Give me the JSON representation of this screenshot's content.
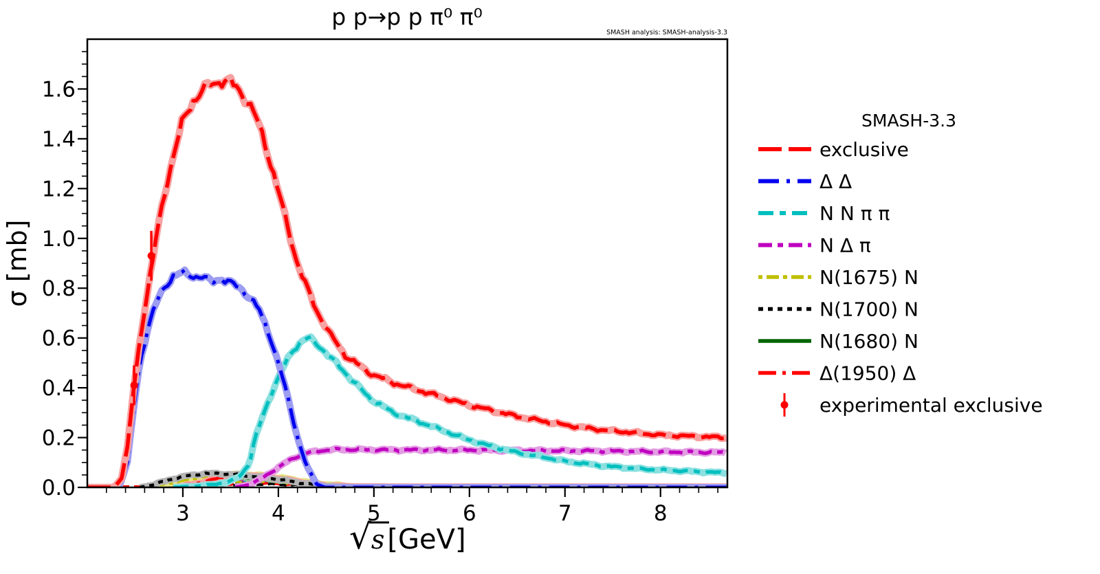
{
  "title": "p p→p p π⁰ π⁰",
  "watermark": "SMASH analysis: SMASH-analysis-3.3",
  "xlabel_parts": {
    "radical": "√",
    "symbol": "s",
    "unit": "[GeV]"
  },
  "legend": {
    "title": "SMASH-3.3"
  },
  "colors": {
    "exclusive": "#ff0000",
    "delta_delta": "#0000ee",
    "nnpipi": "#00bfbf",
    "ndpi": "#bf00bf",
    "n1675": "#bfbf00",
    "n1700": "#000000",
    "n1680": "#006400",
    "d1950": "#ff0000",
    "experimental": "#ff0000"
  },
  "chart_data": {
    "type": "line",
    "title": "p p→p p π⁰ π⁰",
    "xlabel": "√s [GeV]",
    "ylabel": "σ [mb]",
    "xlim": [
      2.0,
      8.7
    ],
    "ylim": [
      0,
      1.8
    ],
    "xticks": [
      3,
      4,
      5,
      6,
      7,
      8
    ],
    "yticks": [
      0.0,
      0.2,
      0.4,
      0.6,
      0.8,
      1.0,
      1.2,
      1.4,
      1.6
    ],
    "x_minor_step": 0.2,
    "y_minor_step": 0.05,
    "grid": false,
    "legend_position": "right-outside",
    "series": [
      {
        "name": "exclusive",
        "label": "exclusive",
        "color": "#ff0000",
        "band": "#f8a2a2",
        "dash": "34 10",
        "width": 5.5,
        "z": 9,
        "in_legend": true,
        "points": [
          [
            2.0,
            0
          ],
          [
            2.28,
            0
          ],
          [
            2.36,
            0.04
          ],
          [
            2.42,
            0.16
          ],
          [
            2.49,
            0.41
          ],
          [
            2.56,
            0.62
          ],
          [
            2.62,
            0.76
          ],
          [
            2.7,
            0.95
          ],
          [
            2.8,
            1.17
          ],
          [
            2.9,
            1.33
          ],
          [
            3.0,
            1.47
          ],
          [
            3.1,
            1.55
          ],
          [
            3.2,
            1.59
          ],
          [
            3.3,
            1.62
          ],
          [
            3.4,
            1.635
          ],
          [
            3.5,
            1.625
          ],
          [
            3.6,
            1.59
          ],
          [
            3.7,
            1.54
          ],
          [
            3.8,
            1.45
          ],
          [
            3.9,
            1.33
          ],
          [
            4.0,
            1.19
          ],
          [
            4.1,
            1.04
          ],
          [
            4.2,
            0.9
          ],
          [
            4.3,
            0.8
          ],
          [
            4.4,
            0.71
          ],
          [
            4.55,
            0.61
          ],
          [
            4.7,
            0.53
          ],
          [
            4.95,
            0.46
          ],
          [
            5.2,
            0.42
          ],
          [
            5.6,
            0.375
          ],
          [
            6.0,
            0.33
          ],
          [
            6.5,
            0.285
          ],
          [
            7.0,
            0.25
          ],
          [
            7.4,
            0.23
          ],
          [
            8.0,
            0.21
          ],
          [
            8.69,
            0.2
          ]
        ]
      },
      {
        "name": "delta-delta",
        "label": "Δ Δ",
        "color": "#0000ee",
        "band": "#9d9df2",
        "dash": "30 11 5 11",
        "width": 5,
        "z": 8,
        "in_legend": true,
        "points": [
          [
            2.0,
            0
          ],
          [
            2.33,
            0
          ],
          [
            2.42,
            0.1
          ],
          [
            2.49,
            0.33
          ],
          [
            2.55,
            0.5
          ],
          [
            2.62,
            0.62
          ],
          [
            2.7,
            0.72
          ],
          [
            2.8,
            0.8
          ],
          [
            2.9,
            0.85
          ],
          [
            3.0,
            0.86
          ],
          [
            3.1,
            0.85
          ],
          [
            3.2,
            0.845
          ],
          [
            3.3,
            0.825
          ],
          [
            3.4,
            0.84
          ],
          [
            3.5,
            0.82
          ],
          [
            3.6,
            0.8
          ],
          [
            3.7,
            0.765
          ],
          [
            3.8,
            0.71
          ],
          [
            3.9,
            0.62
          ],
          [
            4.0,
            0.5
          ],
          [
            4.1,
            0.36
          ],
          [
            4.2,
            0.2
          ],
          [
            4.3,
            0.08
          ],
          [
            4.4,
            0.015
          ],
          [
            4.48,
            0
          ],
          [
            8.69,
            0
          ]
        ]
      },
      {
        "name": "nn-pipi",
        "label": "N N π π",
        "color": "#00bfbf",
        "band": "#8ce0e0",
        "dash": "22 9 9 9",
        "width": 5,
        "z": 7,
        "in_legend": true,
        "points": [
          [
            2.9,
            0
          ],
          [
            3.3,
            0.01
          ],
          [
            3.5,
            0.025
          ],
          [
            3.6,
            0.045
          ],
          [
            3.7,
            0.1
          ],
          [
            3.75,
            0.19
          ],
          [
            3.85,
            0.3
          ],
          [
            3.95,
            0.4
          ],
          [
            4.05,
            0.48
          ],
          [
            4.15,
            0.55
          ],
          [
            4.25,
            0.59
          ],
          [
            4.32,
            0.6
          ],
          [
            4.45,
            0.56
          ],
          [
            4.6,
            0.5
          ],
          [
            4.8,
            0.42
          ],
          [
            4.95,
            0.36
          ],
          [
            5.2,
            0.3
          ],
          [
            5.57,
            0.25
          ],
          [
            5.96,
            0.195
          ],
          [
            6.18,
            0.17
          ],
          [
            6.5,
            0.14
          ],
          [
            6.8,
            0.12
          ],
          [
            7.0,
            0.105
          ],
          [
            7.4,
            0.086
          ],
          [
            7.8,
            0.074
          ],
          [
            8.0,
            0.07
          ],
          [
            8.4,
            0.063
          ],
          [
            8.69,
            0.058
          ]
        ]
      },
      {
        "name": "n-delta-pi",
        "label": "N Δ π",
        "color": "#bf00bf",
        "band": "#e39de3",
        "dash": "20 8 8 8",
        "width": 5,
        "z": 6,
        "in_legend": true,
        "points": [
          [
            3.55,
            0
          ],
          [
            3.7,
            0.012
          ],
          [
            3.8,
            0.03
          ],
          [
            3.9,
            0.055
          ],
          [
            4.0,
            0.08
          ],
          [
            4.1,
            0.105
          ],
          [
            4.2,
            0.125
          ],
          [
            4.3,
            0.138
          ],
          [
            4.45,
            0.148
          ],
          [
            4.6,
            0.152
          ],
          [
            5.0,
            0.151
          ],
          [
            5.5,
            0.15
          ],
          [
            6.0,
            0.15
          ],
          [
            6.5,
            0.148
          ],
          [
            7.0,
            0.147
          ],
          [
            7.4,
            0.146
          ],
          [
            8.0,
            0.143
          ],
          [
            8.69,
            0.14
          ]
        ]
      },
      {
        "name": "n1675-n",
        "label": "N(1675) N",
        "color": "#bfbf00",
        "band": "#e6e68a",
        "dash": "6 6 18 6",
        "width": 4.5,
        "z": 3,
        "in_legend": true,
        "points": [
          [
            2.6,
            0
          ],
          [
            2.9,
            0.02
          ],
          [
            3.2,
            0.042
          ],
          [
            3.5,
            0.052
          ],
          [
            3.7,
            0.052
          ],
          [
            3.9,
            0.045
          ],
          [
            4.1,
            0.035
          ],
          [
            4.3,
            0.022
          ],
          [
            4.5,
            0.012
          ],
          [
            4.8,
            0.004
          ],
          [
            5.1,
            0.001
          ],
          [
            5.4,
            0
          ],
          [
            8.69,
            0
          ]
        ]
      },
      {
        "name": "n1700-n",
        "label": "N(1700) N",
        "color": "#000000",
        "band": "#b5b5b5",
        "dash": "7 7",
        "width": 4.5,
        "z": 5,
        "in_legend": true,
        "points": [
          [
            2.55,
            0
          ],
          [
            2.7,
            0.012
          ],
          [
            2.9,
            0.035
          ],
          [
            3.1,
            0.05
          ],
          [
            3.25,
            0.056
          ],
          [
            3.4,
            0.055
          ],
          [
            3.6,
            0.05
          ],
          [
            3.8,
            0.042
          ],
          [
            4.0,
            0.032
          ],
          [
            4.2,
            0.02
          ],
          [
            4.4,
            0.01
          ],
          [
            4.6,
            0.003
          ],
          [
            4.8,
            0
          ],
          [
            8.69,
            0
          ]
        ]
      },
      {
        "name": "n1680-n",
        "label": "N(1680) N",
        "color": "#006400",
        "band": "#8fbf8f",
        "dash": "",
        "width": 4.5,
        "z": 2,
        "in_legend": true,
        "points": [
          [
            2.6,
            0
          ],
          [
            2.9,
            0.018
          ],
          [
            3.2,
            0.035
          ],
          [
            3.5,
            0.042
          ],
          [
            3.8,
            0.038
          ],
          [
            4.0,
            0.03
          ],
          [
            4.2,
            0.02
          ],
          [
            4.4,
            0.01
          ],
          [
            4.6,
            0.003
          ],
          [
            4.85,
            0
          ],
          [
            8.69,
            0
          ]
        ]
      },
      {
        "name": "delta1950-delta",
        "label": "Δ(1950) Δ",
        "color": "#ff0000",
        "band": "#f8a2a2",
        "dash": "26 9 5 9",
        "width": 4.5,
        "z": 4,
        "in_legend": true,
        "points": [
          [
            2.9,
            0
          ],
          [
            3.1,
            0.012
          ],
          [
            3.3,
            0.03
          ],
          [
            3.5,
            0.048
          ],
          [
            3.7,
            0.05
          ],
          [
            3.9,
            0.042
          ],
          [
            4.1,
            0.03
          ],
          [
            4.3,
            0.018
          ],
          [
            4.5,
            0.008
          ],
          [
            4.75,
            0.004
          ],
          [
            5.2,
            0.003
          ],
          [
            8.69,
            0.003
          ]
        ]
      },
      {
        "name": "minor-blue",
        "label": "",
        "color": "#0000ee",
        "band": "",
        "dash": "10 7",
        "width": 3.5,
        "z": 1,
        "in_legend": false,
        "points": [
          [
            2.5,
            0
          ],
          [
            3.0,
            0.02
          ],
          [
            3.5,
            0.03
          ],
          [
            4.0,
            0.022
          ],
          [
            4.4,
            0.01
          ],
          [
            4.8,
            0.004
          ],
          [
            8.69,
            0.003
          ]
        ]
      },
      {
        "name": "minor-green",
        "label": "",
        "color": "#008000",
        "band": "",
        "dash": "10 7",
        "width": 3.5,
        "z": 1,
        "in_legend": false,
        "points": [
          [
            2.6,
            0
          ],
          [
            3.1,
            0.015
          ],
          [
            3.6,
            0.025
          ],
          [
            4.0,
            0.018
          ],
          [
            4.5,
            0.006
          ],
          [
            5.0,
            0.002
          ],
          [
            8.69,
            0.002
          ]
        ]
      },
      {
        "name": "minor-cyan",
        "label": "",
        "color": "#00bfbf",
        "band": "",
        "dash": "10 7",
        "width": 3.5,
        "z": 1,
        "in_legend": false,
        "points": [
          [
            2.55,
            0
          ],
          [
            3.0,
            0.025
          ],
          [
            3.4,
            0.031
          ],
          [
            3.9,
            0.02
          ],
          [
            4.3,
            0.008
          ],
          [
            4.7,
            0.002
          ],
          [
            8.69,
            0.002
          ]
        ]
      },
      {
        "name": "minor-magenta",
        "label": "",
        "color": "#bf00bf",
        "band": "",
        "dash": "10 7",
        "width": 3.5,
        "z": 1,
        "in_legend": false,
        "points": [
          [
            2.6,
            0
          ],
          [
            3.0,
            0.018
          ],
          [
            3.5,
            0.028
          ],
          [
            4.0,
            0.02
          ],
          [
            4.4,
            0.008
          ],
          [
            4.8,
            0.003
          ],
          [
            8.69,
            0.002
          ]
        ]
      },
      {
        "name": "minor-gray",
        "label": "",
        "color": "#808080",
        "band": "",
        "dash": "10 7",
        "width": 3.5,
        "z": 1,
        "in_legend": false,
        "points": [
          [
            2.7,
            0
          ],
          [
            3.2,
            0.012
          ],
          [
            3.6,
            0.02
          ],
          [
            4.0,
            0.014
          ],
          [
            4.4,
            0.006
          ],
          [
            4.8,
            0.002
          ],
          [
            8.69,
            0.001
          ]
        ]
      },
      {
        "name": "minor-red",
        "label": "",
        "color": "#ff0000",
        "band": "",
        "dash": "10 7",
        "width": 3.5,
        "z": 1,
        "in_legend": false,
        "points": [
          [
            2.0,
            0.003
          ],
          [
            2.9,
            0.004
          ],
          [
            3.3,
            0.01
          ],
          [
            3.8,
            0.016
          ],
          [
            4.3,
            0.008
          ],
          [
            4.8,
            0.004
          ],
          [
            8.69,
            0.004
          ]
        ]
      },
      {
        "name": "minor-olive",
        "label": "",
        "color": "#bfbf00",
        "band": "",
        "dash": "10 7",
        "width": 3.5,
        "z": 1,
        "in_legend": false,
        "points": [
          [
            2.7,
            0
          ],
          [
            3.3,
            0.02
          ],
          [
            3.8,
            0.026
          ],
          [
            4.2,
            0.012
          ],
          [
            4.7,
            0.004
          ],
          [
            8.69,
            0.003
          ]
        ]
      },
      {
        "name": "minor-black",
        "label": "",
        "color": "#000000",
        "band": "",
        "dash": "10 7",
        "width": 3.5,
        "z": 1,
        "in_legend": false,
        "points": [
          [
            2.8,
            0
          ],
          [
            3.3,
            0.01
          ],
          [
            3.9,
            0.012
          ],
          [
            4.4,
            0.005
          ],
          [
            8.69,
            0.002
          ]
        ]
      }
    ],
    "experimental": {
      "label": "experimental exclusive",
      "color": "#ff0000",
      "points": [
        {
          "x": 2.49,
          "y": 0.41,
          "err": 0.08
        },
        {
          "x": 2.67,
          "y": 0.93,
          "err": 0.1
        }
      ]
    }
  }
}
